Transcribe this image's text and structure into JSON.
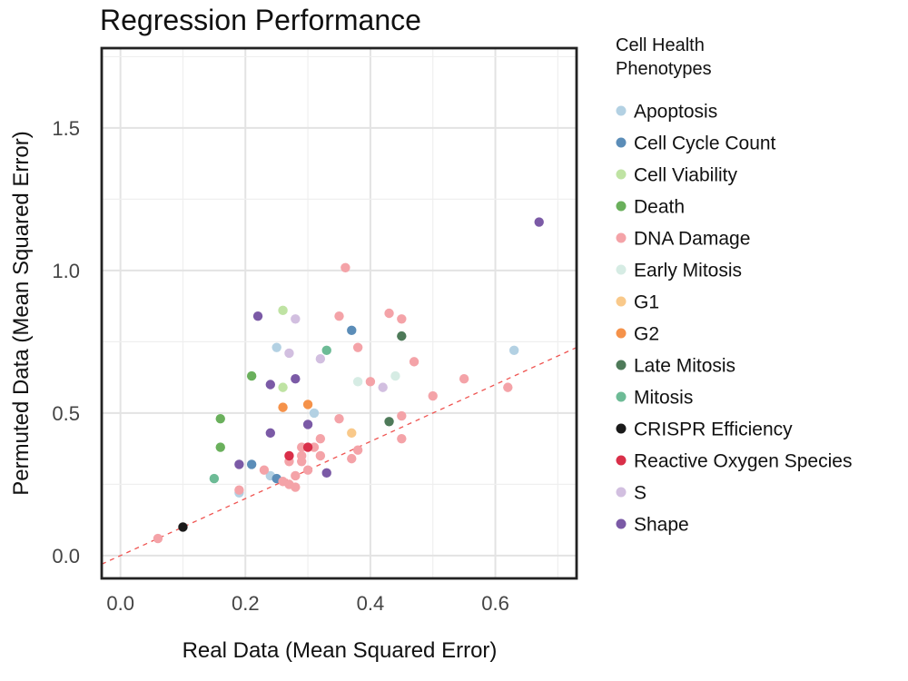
{
  "chart_data": {
    "type": "scatter",
    "title": "Regression Performance",
    "xlabel": "Real Data (Mean Squared Error)",
    "ylabel": "Permuted Data (Mean Squared Error)",
    "xlim": [
      -0.03,
      0.73
    ],
    "ylim": [
      -0.08,
      1.78
    ],
    "xticks": [
      0.0,
      0.2,
      0.4,
      0.6
    ],
    "yticks": [
      0.0,
      0.5,
      1.0,
      1.5
    ],
    "grid": true,
    "reference_line": "y = x",
    "legend": {
      "title": "Cell Health Phenotypes",
      "placement": "right, outside plot"
    },
    "series": [
      {
        "name": "Apoptosis",
        "color": "#b3d1e3",
        "points": [
          [
            0.25,
            0.73
          ],
          [
            0.24,
            0.28
          ],
          [
            0.31,
            0.5
          ],
          [
            0.63,
            0.72
          ],
          [
            0.19,
            0.22
          ]
        ]
      },
      {
        "name": "Cell Cycle Count",
        "color": "#5b8db8",
        "points": [
          [
            0.37,
            0.79
          ],
          [
            0.21,
            0.32
          ],
          [
            0.25,
            0.27
          ]
        ]
      },
      {
        "name": "Cell Viability",
        "color": "#bfe3a3",
        "points": [
          [
            0.26,
            0.86
          ],
          [
            0.26,
            0.59
          ]
        ]
      },
      {
        "name": "Death",
        "color": "#6ab05c",
        "points": [
          [
            0.21,
            0.63
          ],
          [
            0.16,
            0.48
          ],
          [
            0.16,
            0.38
          ]
        ]
      },
      {
        "name": "DNA Damage",
        "color": "#f4a3a8",
        "points": [
          [
            0.36,
            1.01
          ],
          [
            0.35,
            0.84
          ],
          [
            0.43,
            0.85
          ],
          [
            0.45,
            0.83
          ],
          [
            0.38,
            0.73
          ],
          [
            0.47,
            0.68
          ],
          [
            0.4,
            0.61
          ],
          [
            0.55,
            0.62
          ],
          [
            0.62,
            0.59
          ],
          [
            0.5,
            0.56
          ],
          [
            0.45,
            0.49
          ],
          [
            0.35,
            0.48
          ],
          [
            0.45,
            0.41
          ],
          [
            0.32,
            0.41
          ],
          [
            0.29,
            0.38
          ],
          [
            0.31,
            0.38
          ],
          [
            0.38,
            0.37
          ],
          [
            0.29,
            0.35
          ],
          [
            0.32,
            0.35
          ],
          [
            0.29,
            0.33
          ],
          [
            0.27,
            0.33
          ],
          [
            0.37,
            0.34
          ],
          [
            0.3,
            0.3
          ],
          [
            0.23,
            0.3
          ],
          [
            0.28,
            0.28
          ],
          [
            0.26,
            0.26
          ],
          [
            0.27,
            0.25
          ],
          [
            0.28,
            0.24
          ],
          [
            0.19,
            0.23
          ],
          [
            0.06,
            0.06
          ]
        ]
      },
      {
        "name": "Early Mitosis",
        "color": "#d6ece4",
        "points": [
          [
            0.38,
            0.61
          ],
          [
            0.44,
            0.63
          ]
        ]
      },
      {
        "name": "G1",
        "color": "#f9c98a",
        "points": [
          [
            0.37,
            0.43
          ]
        ]
      },
      {
        "name": "G2",
        "color": "#f5924a",
        "points": [
          [
            0.3,
            0.53
          ],
          [
            0.26,
            0.52
          ]
        ]
      },
      {
        "name": "Late Mitosis",
        "color": "#4e7a59",
        "points": [
          [
            0.45,
            0.77
          ],
          [
            0.43,
            0.47
          ]
        ]
      },
      {
        "name": "Mitosis",
        "color": "#6dbb96",
        "points": [
          [
            0.33,
            0.72
          ],
          [
            0.15,
            0.27
          ]
        ]
      },
      {
        "name": "CRISPR Efficiency",
        "color": "#1a1a1a",
        "points": [
          [
            0.1,
            0.1
          ]
        ]
      },
      {
        "name": "Reactive Oxygen Species",
        "color": "#d92f49",
        "points": [
          [
            0.27,
            0.35
          ],
          [
            0.3,
            0.38
          ]
        ]
      },
      {
        "name": "S",
        "color": "#d2bfe0",
        "points": [
          [
            0.28,
            0.83
          ],
          [
            0.27,
            0.71
          ],
          [
            0.32,
            0.69
          ],
          [
            0.42,
            0.59
          ]
        ]
      },
      {
        "name": "Shape",
        "color": "#7b5aa6",
        "points": [
          [
            0.67,
            1.17
          ],
          [
            0.22,
            0.84
          ],
          [
            0.28,
            0.62
          ],
          [
            0.24,
            0.6
          ],
          [
            0.3,
            0.46
          ],
          [
            0.24,
            0.43
          ],
          [
            0.19,
            0.32
          ],
          [
            0.33,
            0.29
          ]
        ]
      }
    ]
  }
}
